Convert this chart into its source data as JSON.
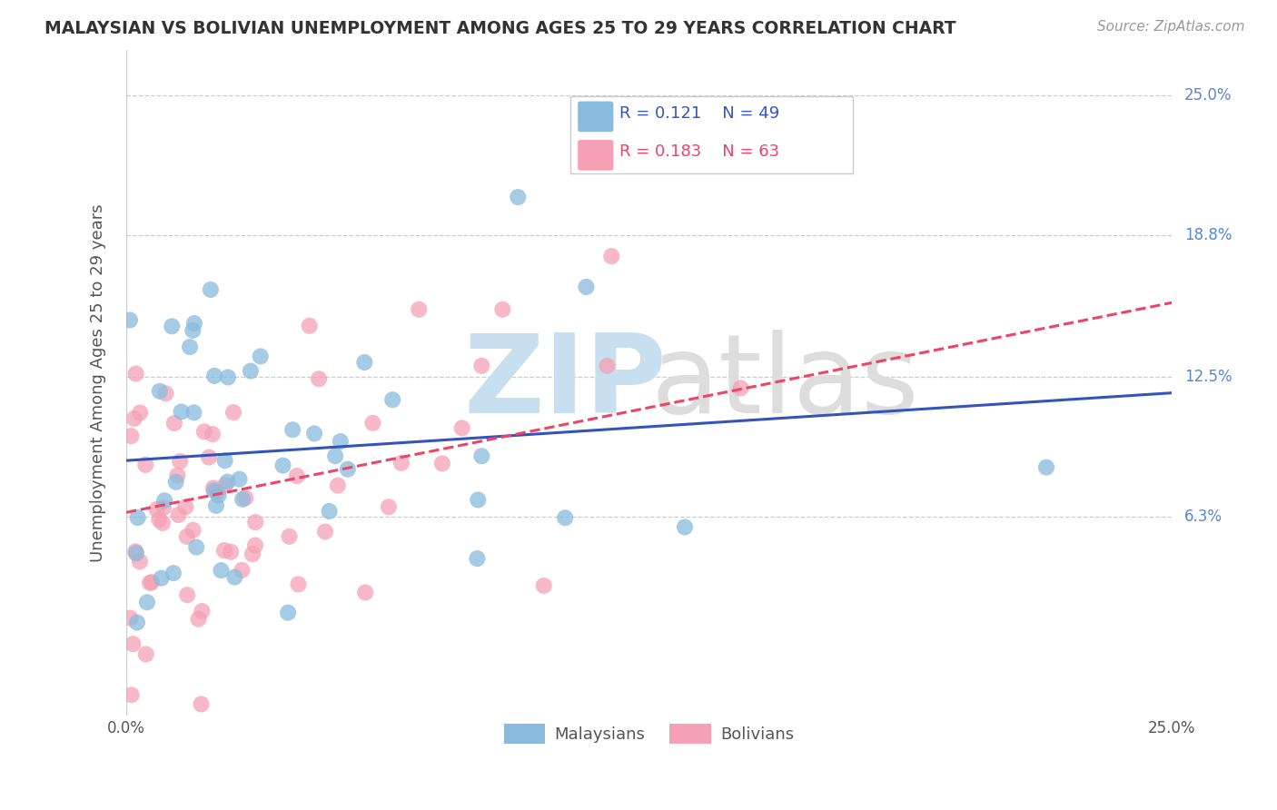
{
  "title": "MALAYSIAN VS BOLIVIAN UNEMPLOYMENT AMONG AGES 25 TO 29 YEARS CORRELATION CHART",
  "source": "Source: ZipAtlas.com",
  "ylabel": "Unemployment Among Ages 25 to 29 years",
  "xlim": [
    0.0,
    0.25
  ],
  "ylim": [
    -0.025,
    0.27
  ],
  "blue_color": "#88BBDD",
  "pink_color": "#F5A0B5",
  "blue_line_color": "#3355BB",
  "pink_line_color": "#EE4466",
  "grid_color": "#CCCCCC",
  "title_color": "#333333",
  "source_color": "#999999",
  "axis_color": "#555555",
  "right_label_color": "#5588CC",
  "watermark_zip_color": "#C8DFF0",
  "watermark_atlas_color": "#DDDDDD",
  "legend_r_blue": "0.121",
  "legend_n_blue": "49",
  "legend_r_pink": "0.183",
  "legend_n_pink": "63",
  "blue_legend_text_color": "#3355CC",
  "pink_legend_text_color": "#EE4466",
  "ytick_positions": [
    0.063,
    0.125,
    0.188,
    0.25
  ],
  "right_labels": [
    "6.3%",
    "12.5%",
    "18.8%",
    "25.0%"
  ],
  "xtick_positions": [
    0.0,
    0.05,
    0.1,
    0.15,
    0.2,
    0.25
  ],
  "xtick_labels": [
    "0.0%",
    "",
    "",
    "",
    "",
    "25.0%"
  ],
  "blue_trend": [
    0.088,
    0.118
  ],
  "pink_trend": [
    0.065,
    0.158
  ],
  "marker_size": 170,
  "trend_linewidth": 2.2
}
